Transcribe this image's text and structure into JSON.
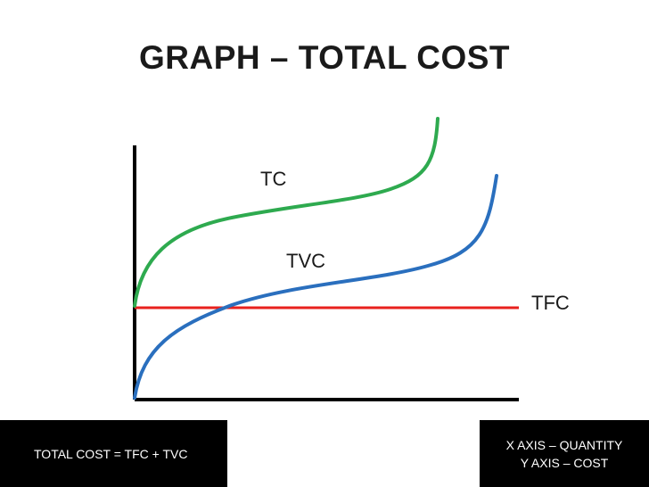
{
  "slide": {
    "title": "GRAPH – TOTAL COST"
  },
  "graph": {
    "labels": {
      "tc": "TC",
      "tvc": "TVC",
      "tfc": "TFC"
    },
    "colors": {
      "axes": "#000000",
      "tc": "#2eaa4f",
      "tvc": "#2a6fbe",
      "tfc": "#e8211d"
    }
  },
  "footer": {
    "formula": "TOTAL COST = TFC + TVC",
    "x_axis_note": "X AXIS – QUANTITY",
    "y_axis_note": "Y AXIS – COST"
  }
}
